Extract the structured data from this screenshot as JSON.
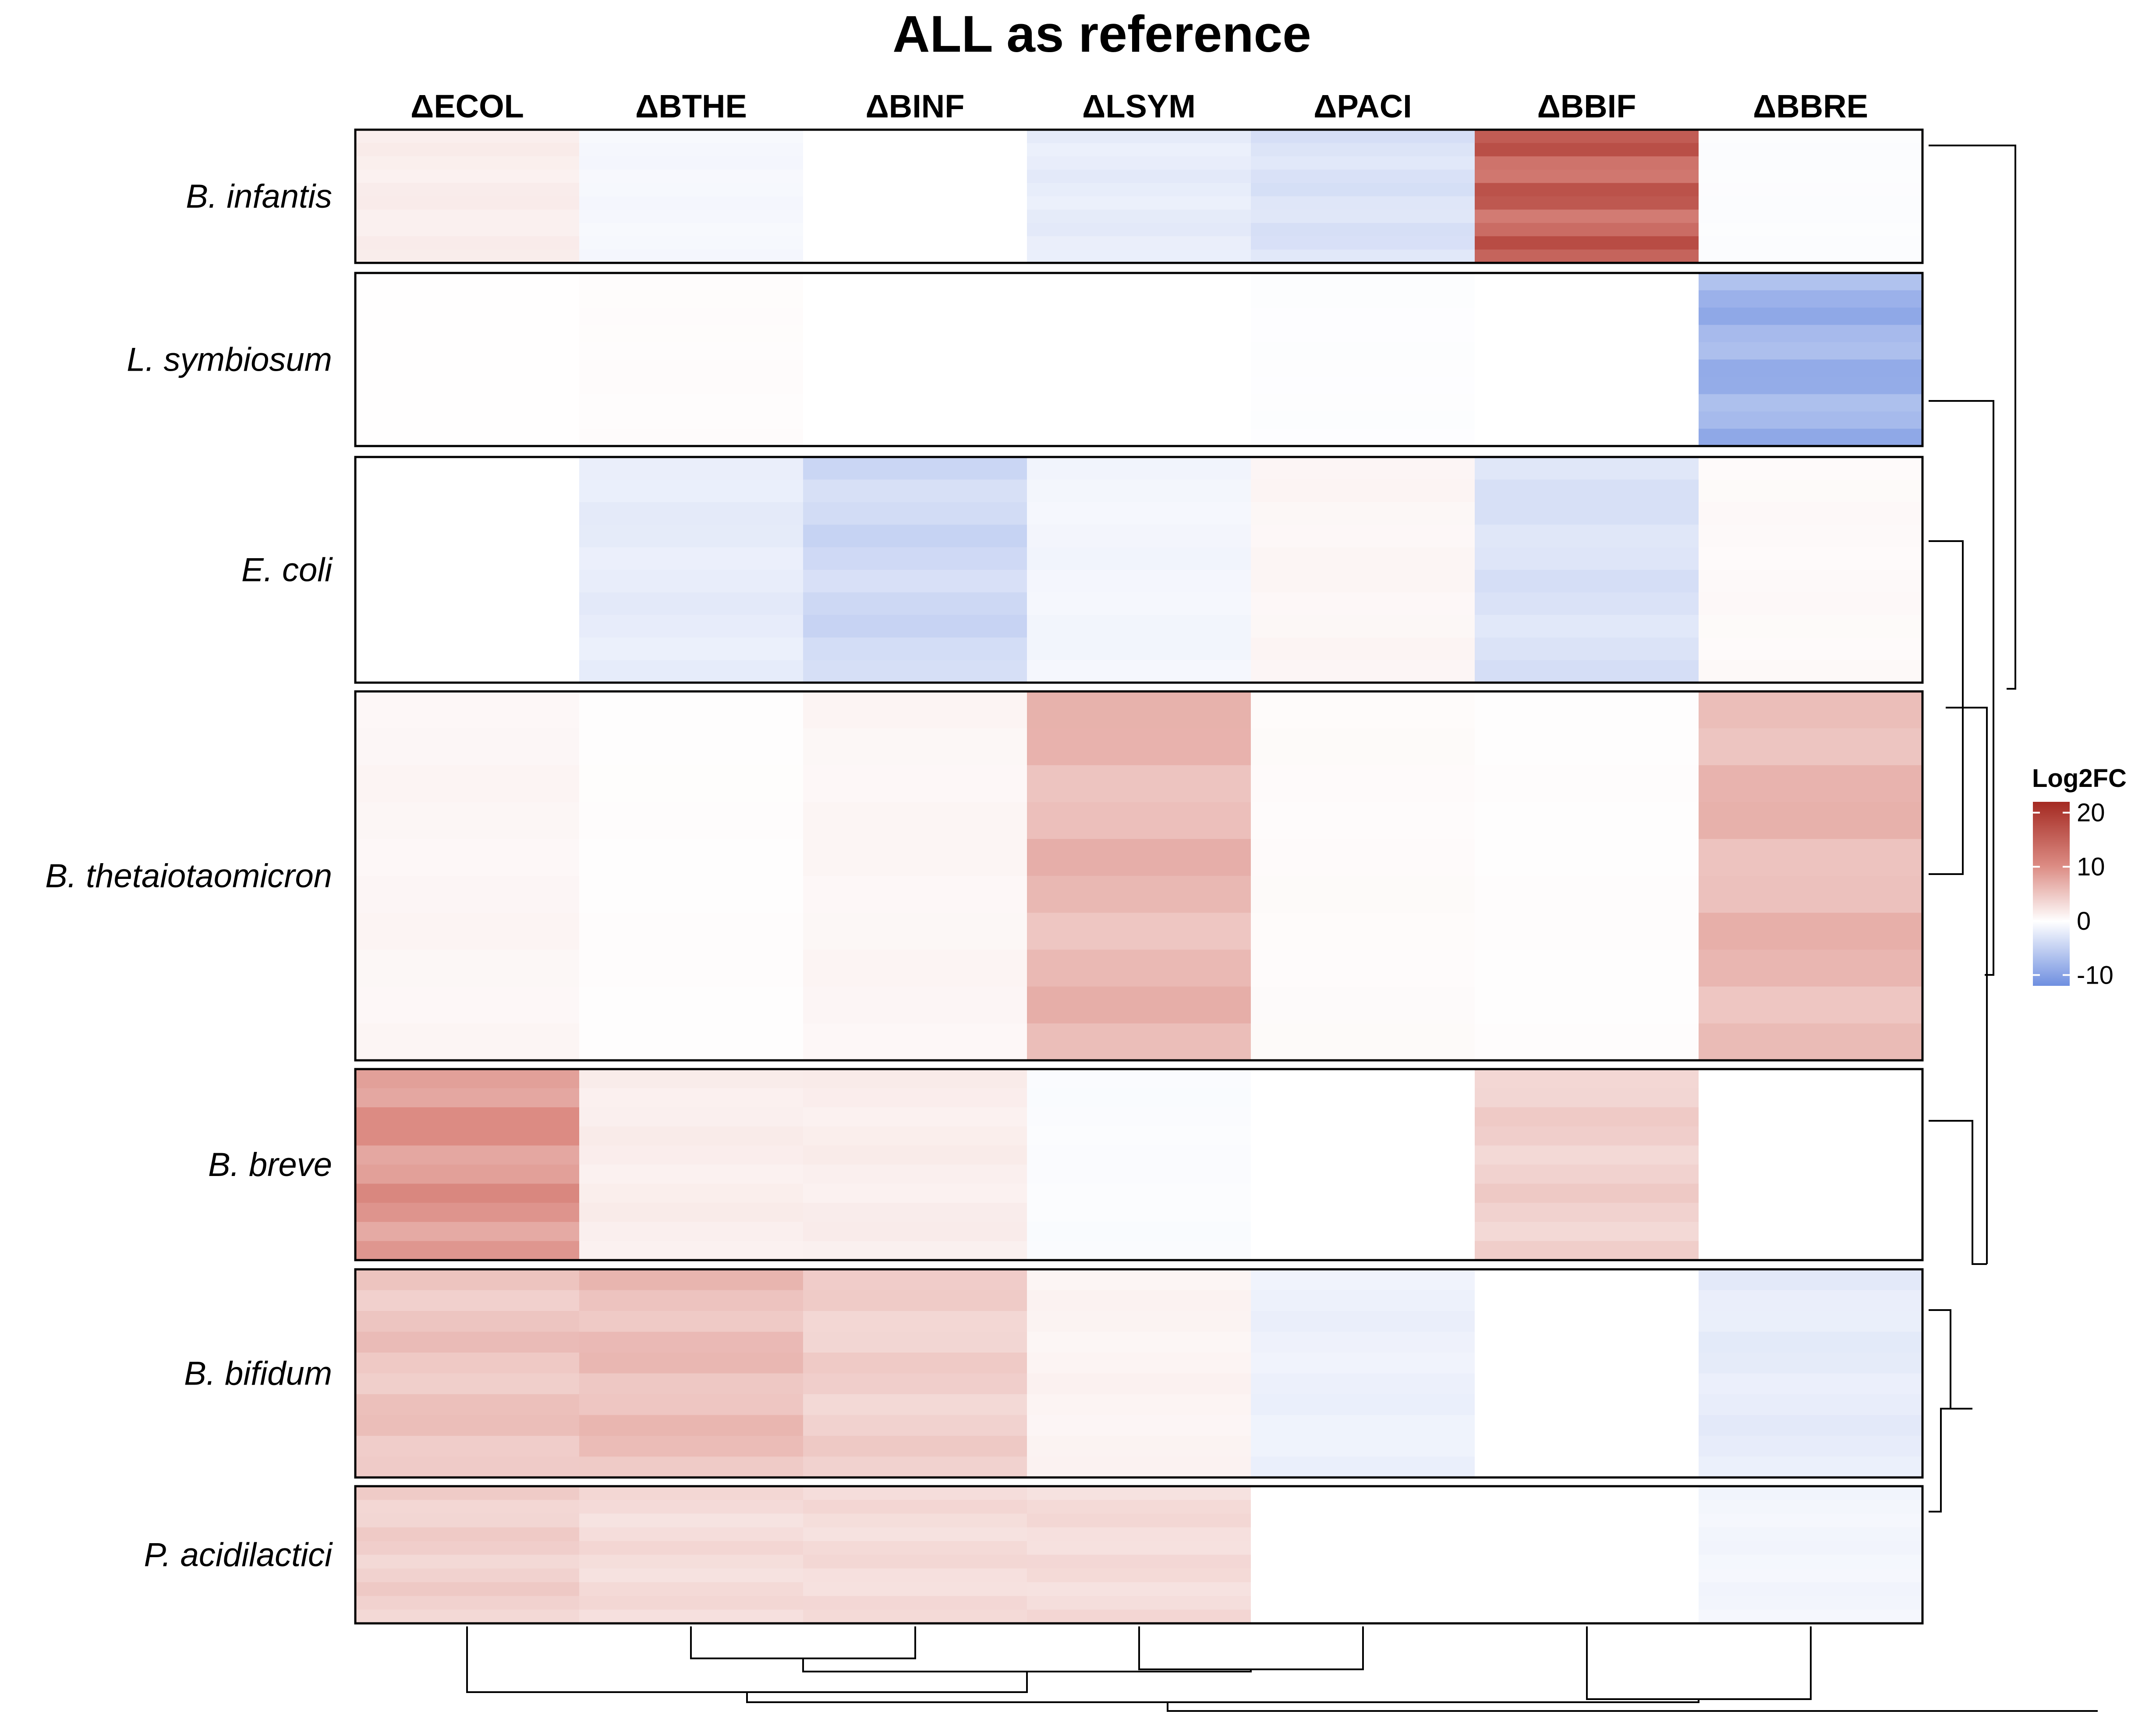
{
  "chart_data": {
    "type": "heatmap",
    "title": "ALL as reference",
    "columns": [
      "ΔECOL",
      "ΔBTHE",
      "ΔBINF",
      "ΔLSYM",
      "ΔPACI",
      "ΔBBIF",
      "ΔBBRE"
    ],
    "row_groups": [
      "B. infantis",
      "L. symbiosum",
      "E. coli",
      "B. thetaiotaomicron",
      "B. breve",
      "B. bifidum",
      "P. acidilactici"
    ],
    "legend": {
      "title": "Log2FC",
      "ticks": [
        20,
        10,
        0,
        -10
      ],
      "min": -12,
      "max": 22,
      "placement": "right"
    },
    "colors": {
      "high": "#a42a22",
      "mid_high": "#dc8c84",
      "zero": "#ffffff",
      "low": "#6f8fe0"
    },
    "group_mean_log2fc": [
      [
        1.5,
        -0.8,
        0.0,
        -2.0,
        -3.0,
        14.0,
        -0.3
      ],
      [
        0.1,
        0.3,
        0.0,
        0.0,
        -0.2,
        0.0,
        -8.0
      ],
      [
        0.0,
        -2.0,
        -4.0,
        -1.0,
        0.8,
        -3.0,
        0.5
      ],
      [
        0.8,
        0.2,
        0.8,
        6.0,
        0.4,
        0.2,
        6.0
      ],
      [
        9.0,
        1.5,
        1.5,
        -0.4,
        0.0,
        4.0,
        0.0
      ],
      [
        5.0,
        5.5,
        4.0,
        1.0,
        -1.5,
        0.0,
        -2.0
      ],
      [
        4.0,
        3.0,
        3.0,
        3.0,
        0.0,
        0.0,
        -1.0
      ]
    ],
    "row_dendrogram_order": [
      "B. infantis",
      "L. symbiosum",
      "E. coli",
      "B. thetaiotaomicron",
      "B. breve",
      "B. bifidum",
      "P. acidilactici"
    ],
    "column_dendrogram_order": [
      "ΔECOL",
      "ΔBTHE",
      "ΔBINF",
      "ΔLSYM",
      "ΔPACI",
      "ΔBBIF",
      "ΔBBRE"
    ]
  }
}
